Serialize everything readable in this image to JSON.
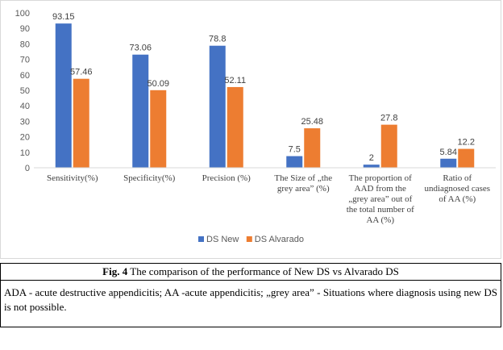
{
  "chart_data": {
    "type": "bar",
    "categories": [
      [
        "Sensitivity(%)"
      ],
      [
        "Specificity(%)"
      ],
      [
        "Precision (%)"
      ],
      [
        "The Size of „the",
        "grey area” (%)"
      ],
      [
        "The proportion of",
        "AAD from the",
        "„grey area” out of",
        "the total number of",
        "AA (%)"
      ],
      [
        "Ratio of",
        "undiagnosed cases",
        "of AA (%)"
      ]
    ],
    "series": [
      {
        "name": "DS New",
        "color": "#4472c4",
        "values": [
          93.15,
          73.06,
          78.8,
          7.5,
          2,
          5.84
        ],
        "labels": [
          "93.15",
          "73.06",
          "78.8",
          "7.5",
          "2",
          "5.84"
        ]
      },
      {
        "name": "DS Alvarado",
        "color": "#ed7d31",
        "values": [
          57.46,
          50.09,
          52.11,
          25.48,
          27.8,
          12.2
        ],
        "labels": [
          "57.46",
          "50.09",
          "52.11",
          "25.48",
          "27.8",
          "12.2"
        ]
      }
    ],
    "yticks": [
      "0",
      "10",
      "20",
      "30",
      "40",
      "50",
      "60",
      "70",
      "80",
      "90",
      "100"
    ],
    "ylim": [
      0,
      100
    ],
    "grid": false,
    "legend": "bottom"
  },
  "caption": {
    "fig_label": "Fig. 4",
    "text": "The comparison of the performance of New DS vs Alvarado DS",
    "note": "ADA - acute destructive appendicitis; AA -acute appendicitis; „grey area” - Situations where diagnosis using new DS is not possible."
  }
}
